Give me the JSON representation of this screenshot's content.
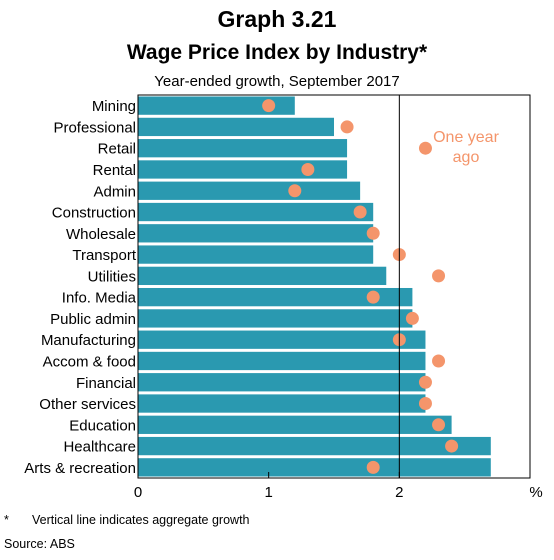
{
  "header": {
    "graph_number": "Graph 3.21",
    "title": "Wage Price Index by Industry*",
    "subtitle": "Year-ended growth, September 2017"
  },
  "legend": {
    "one_year_ago": "One year ago"
  },
  "footer": {
    "marker": "*",
    "note": "Vertical line indicates aggregate growth",
    "source": "Source:  ABS"
  },
  "colors": {
    "bar": "#2a99b0",
    "dot": "#f4956b",
    "legend_text": "#f4956b"
  },
  "chart_data": {
    "type": "bar",
    "orientation": "horizontal",
    "categories": [
      "Mining",
      "Professional",
      "Retail",
      "Rental",
      "Admin",
      "Construction",
      "Wholesale",
      "Transport",
      "Utilities",
      "Info. Media",
      "Public admin",
      "Manufacturing",
      "Accom & food",
      "Financial",
      "Other services",
      "Education",
      "Healthcare",
      "Arts & recreation"
    ],
    "series": [
      {
        "name": "",
        "type": "bar",
        "values": [
          1.2,
          1.5,
          1.6,
          1.6,
          1.7,
          1.8,
          1.8,
          1.8,
          1.9,
          2.1,
          2.1,
          2.2,
          2.2,
          2.2,
          2.2,
          2.4,
          2.7,
          2.7
        ]
      },
      {
        "name": "One year ago",
        "type": "scatter",
        "values": [
          1.0,
          1.6,
          2.2,
          1.3,
          1.2,
          1.7,
          1.8,
          2.0,
          2.3,
          1.8,
          2.1,
          2.0,
          2.3,
          2.2,
          2.2,
          2.3,
          2.4,
          1.8
        ]
      }
    ],
    "aggregate_growth": 2.0,
    "xlim": [
      0,
      3
    ],
    "xticks": [
      0,
      1,
      2
    ],
    "xunit": "%",
    "grid": false
  }
}
